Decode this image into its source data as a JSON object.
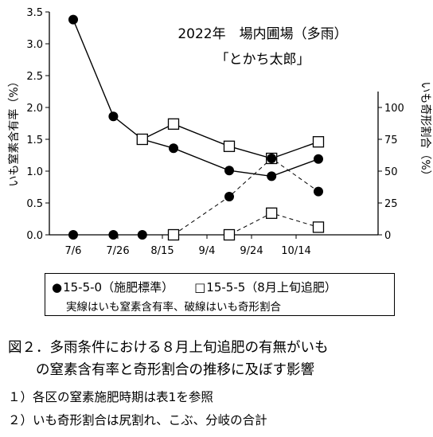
{
  "chart_data": {
    "type": "line",
    "title_line1": "2022年　場内圃場（多雨）",
    "title_line2": "「とかち太郎」",
    "ylabel_left": "いも窒素含有率（%）",
    "ylabel_right": "いも奇形割合（%）",
    "x_tick_labels": [
      "7/6",
      "7/26",
      "8/15",
      "9/4",
      "9/24",
      "10/14"
    ],
    "x_tick_dates": [
      "2022-07-06",
      "2022-07-26",
      "2022-08-15",
      "2022-09-04",
      "2022-09-24",
      "2022-10-14"
    ],
    "y_left_range": [
      0.0,
      3.5
    ],
    "y_left_ticks": [
      "0.0",
      "0.5",
      "1.0",
      "1.5",
      "2.0",
      "2.5",
      "3.0",
      "3.5"
    ],
    "y_right_range": [
      0,
      175
    ],
    "y_right_ticks": [
      "0",
      "25",
      "50",
      "75",
      "100"
    ],
    "grid": false,
    "series": [
      {
        "name": "15-5-0（施肥標準）",
        "metric": "いも窒素含有率",
        "axis": "left",
        "style": "solid",
        "marker": "filled-circle",
        "x": [
          "2022-07-06",
          "2022-07-24",
          "2022-08-06",
          "2022-08-20",
          "2022-09-14",
          "2022-10-03",
          "2022-10-24"
        ],
        "y": [
          3.38,
          1.86,
          1.5,
          1.36,
          1.01,
          0.92,
          1.19
        ]
      },
      {
        "name": "15-5-5（8月上旬追肥）",
        "metric": "いも窒素含有率",
        "axis": "left",
        "style": "solid",
        "marker": "open-square",
        "x": [
          "2022-08-06",
          "2022-08-20",
          "2022-09-14",
          "2022-10-03",
          "2022-10-24"
        ],
        "y": [
          1.5,
          1.74,
          1.39,
          1.2,
          1.46
        ]
      },
      {
        "name": "15-5-0（施肥標準）",
        "metric": "いも奇形割合",
        "axis": "right",
        "style": "dashed",
        "marker": "filled-circle",
        "x": [
          "2022-07-06",
          "2022-07-24",
          "2022-08-06",
          "2022-08-20",
          "2022-09-14",
          "2022-10-03",
          "2022-10-24"
        ],
        "y": [
          0,
          0,
          0,
          0,
          30,
          60,
          34
        ]
      },
      {
        "name": "15-5-5（8月上旬追肥）",
        "metric": "いも奇形割合",
        "axis": "right",
        "style": "dashed",
        "marker": "open-square",
        "x": [
          "2022-08-20",
          "2022-09-14",
          "2022-10-03",
          "2022-10-24"
        ],
        "y": [
          0,
          0,
          17,
          6
        ]
      }
    ]
  },
  "legend": {
    "item1_symbol": "●",
    "item1_label": "15-5-0（施肥標準）",
    "item2_symbol": "□",
    "item2_label": "15-5-5（8月上旬追肥）",
    "note": "実線はいも窒素含有率、破線はいも奇形割合"
  },
  "caption": {
    "line1": "図２．多雨条件における８月上旬追肥の有無がいも",
    "line2": "　　の窒素含有率と奇形割合の推移に及ぼす影響"
  },
  "notes": [
    "１）各区の窒素施肥時期は表1を参照",
    "２）いも奇形割合は尻割れ、こぶ、分岐の合計"
  ]
}
